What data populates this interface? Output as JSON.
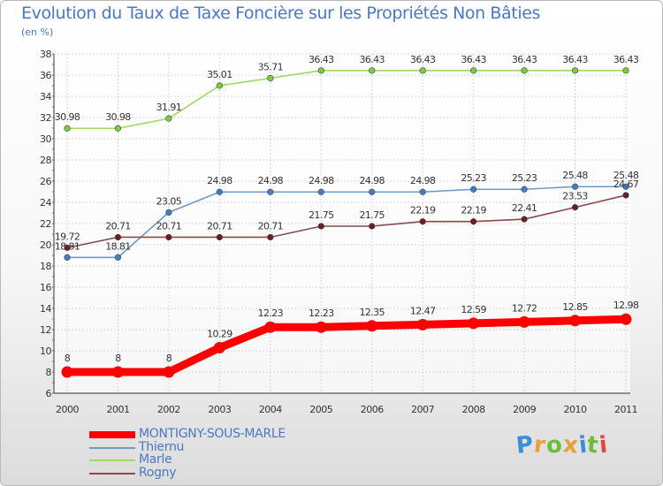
{
  "title": "Evolution du Taux de Taxe Foncière sur les Propriétés Non Bâties",
  "unit_label": "(en %)",
  "logo_text": "Proxiti",
  "logo_colors": [
    "#3b8fd8",
    "#e8a03a",
    "#6cbd3c",
    "#e8a03a",
    "#3b8fd8",
    "#6cbd3c",
    "#e8463a"
  ],
  "chart_data": {
    "type": "line",
    "title": "Evolution du Taux de Taxe Foncière sur les Propriétés Non Bâties",
    "ylabel": "(en %)",
    "xlabel": "",
    "categories": [
      "2000",
      "2001",
      "2002",
      "2003",
      "2004",
      "2005",
      "2006",
      "2007",
      "2008",
      "2009",
      "2010",
      "2011"
    ],
    "ylim": [
      6,
      38
    ],
    "yticks": [
      6,
      8,
      10,
      12,
      14,
      16,
      18,
      20,
      22,
      24,
      26,
      28,
      30,
      32,
      34,
      36,
      38
    ],
    "grid": true,
    "series": [
      {
        "name": "MONTIGNY-SOUS-MARLE",
        "color": "#ff0000",
        "marker": "#ff0000",
        "bold": true,
        "values": [
          8,
          8,
          8,
          10.29,
          12.23,
          12.23,
          12.35,
          12.47,
          12.59,
          12.72,
          12.85,
          12.98
        ],
        "labels": [
          "8",
          "8",
          "8",
          "10.29",
          "12.23",
          "12.23",
          "12.35",
          "12.47",
          "12.59",
          "12.72",
          "12.85",
          "12.98"
        ]
      },
      {
        "name": "Thiernu",
        "color": "#6f9ac4",
        "marker": "#3f7fc4",
        "bold": false,
        "values": [
          18.81,
          18.81,
          23.05,
          24.98,
          24.98,
          24.98,
          24.98,
          24.98,
          25.23,
          25.23,
          25.48,
          25.48
        ],
        "labels": [
          "18.81",
          "18.81",
          "23.05",
          "24.98",
          "24.98",
          "24.98",
          "24.98",
          "24.98",
          "25.23",
          "25.23",
          "25.48",
          "25.48"
        ]
      },
      {
        "name": "Marle",
        "color": "#9ed865",
        "marker": "#7ccc3c",
        "bold": false,
        "values": [
          30.98,
          30.98,
          31.91,
          35.01,
          35.71,
          36.43,
          36.43,
          36.43,
          36.43,
          36.43,
          36.43,
          36.43
        ],
        "labels": [
          "30.98",
          "30.98",
          "31.91",
          "35.01",
          "35.71",
          "36.43",
          "36.43",
          "36.43",
          "36.43",
          "36.43",
          "36.43",
          "36.43"
        ]
      },
      {
        "name": "Rogny",
        "color": "#8a4a4a",
        "marker": "#6a1e24",
        "bold": false,
        "values": [
          19.72,
          20.71,
          20.71,
          20.71,
          20.71,
          21.75,
          21.75,
          22.19,
          22.19,
          22.41,
          23.53,
          24.67
        ],
        "labels": [
          "19.72",
          "20.71",
          "20.71",
          "20.71",
          "20.71",
          "21.75",
          "21.75",
          "22.19",
          "22.19",
          "22.41",
          "23.53",
          "24.67"
        ]
      }
    ],
    "legend_position": "bottom-left"
  }
}
